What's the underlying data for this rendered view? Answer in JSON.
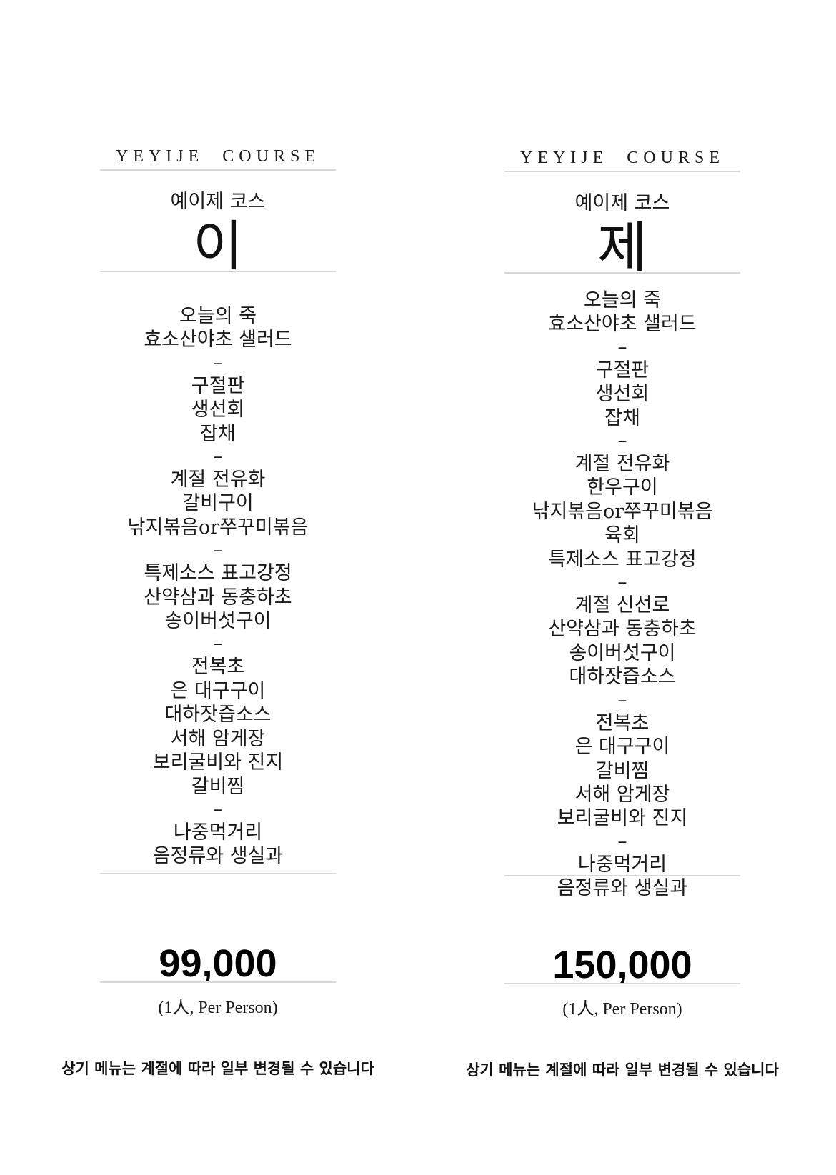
{
  "menus": [
    {
      "eng_title": "YEYIJE  COURSE",
      "kor_title": "예이제 코스",
      "big_char": "이",
      "items": [
        "오늘의 죽",
        "효소산야초 샐러드",
        "–",
        "구절판",
        "생선회",
        "잡채",
        "–",
        "계절 전유화",
        "갈비구이",
        "낚지볶음or쭈꾸미볶음",
        "–",
        "특제소스 표고강정",
        "산약삼과 동충하초",
        "송이버섯구이",
        "–",
        "전복초",
        "은 대구구이",
        "대하잣즙소스",
        "서해 암게장",
        "보리굴비와 진지",
        "갈비찜",
        "–",
        "나중먹거리",
        "음정류와 생실과"
      ],
      "price": "99,000",
      "per_person": "(1人, Per Person)",
      "notice": "상기 메뉴는 계절에 따라 일부 변경될 수 있습니다"
    },
    {
      "eng_title": "YEYIJE  COURSE",
      "kor_title": "예이제 코스",
      "big_char": "제",
      "items": [
        "오늘의 죽",
        "효소산야초 샐러드",
        "–",
        "구절판",
        "생선회",
        "잡채",
        "–",
        "계절 전유화",
        "한우구이",
        "낚지볶음or쭈꾸미볶음",
        "육회",
        "특제소스 표고강정",
        "–",
        "계절 신선로",
        "산약삼과 동충하초",
        "송이버섯구이",
        "대하잣즙소스",
        "–",
        "전복초",
        "은 대구구이",
        "갈비찜",
        "서해 암게장",
        "보리굴비와 진지",
        "–",
        "나중먹거리",
        "음정류와 생실과"
      ],
      "price": "150,000",
      "per_person": "(1人, Per Person)",
      "notice": "상기 메뉴는 계절에 따라 일부 변경될 수 있습니다"
    }
  ]
}
